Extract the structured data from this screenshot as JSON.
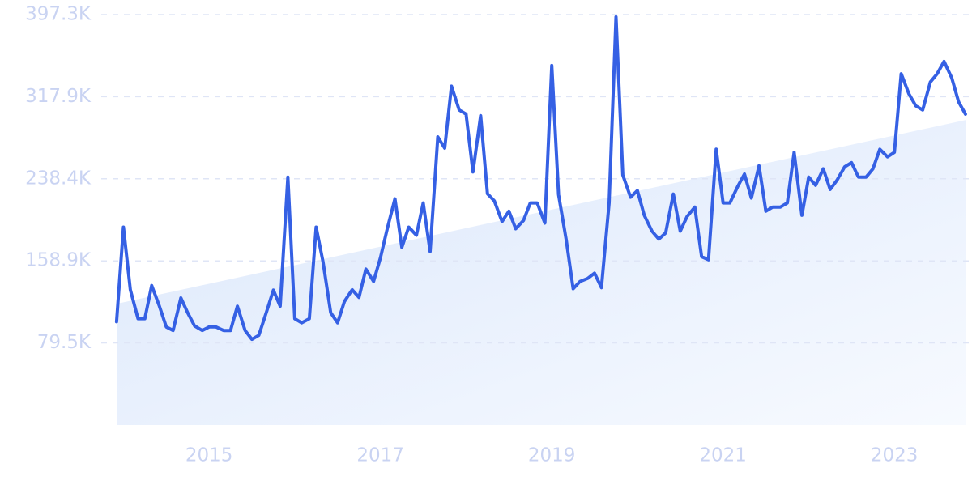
{
  "chart_data": {
    "type": "line",
    "x": [
      2013.92,
      2014.0,
      2014.08,
      2014.17,
      2014.25,
      2014.33,
      2014.42,
      2014.5,
      2014.58,
      2014.67,
      2014.75,
      2014.83,
      2014.92,
      2015.0,
      2015.08,
      2015.17,
      2015.25,
      2015.33,
      2015.42,
      2015.5,
      2015.58,
      2015.67,
      2015.75,
      2015.83,
      2015.92,
      2016.0,
      2016.08,
      2016.17,
      2016.25,
      2016.33,
      2016.42,
      2016.5,
      2016.58,
      2016.67,
      2016.75,
      2016.83,
      2016.92,
      2017.0,
      2017.08,
      2017.17,
      2017.25,
      2017.33,
      2017.42,
      2017.5,
      2017.58,
      2017.67,
      2017.75,
      2017.83,
      2017.92,
      2018.0,
      2018.08,
      2018.17,
      2018.25,
      2018.33,
      2018.42,
      2018.5,
      2018.58,
      2018.67,
      2018.75,
      2018.83,
      2018.92,
      2019.0,
      2019.08,
      2019.17,
      2019.25,
      2019.33,
      2019.42,
      2019.5,
      2019.58,
      2019.67,
      2019.75,
      2019.83,
      2019.92,
      2020.0,
      2020.08,
      2020.17,
      2020.25,
      2020.33,
      2020.42,
      2020.5,
      2020.58,
      2020.67,
      2020.75,
      2020.83,
      2020.92,
      2021.0,
      2021.08,
      2021.17,
      2021.25,
      2021.33,
      2021.42,
      2021.5,
      2021.58,
      2021.67,
      2021.75,
      2021.83,
      2021.92,
      2022.0,
      2022.08,
      2022.17,
      2022.25,
      2022.33,
      2022.42,
      2022.5,
      2022.58,
      2022.67,
      2022.75,
      2022.83,
      2022.92,
      2023.0,
      2023.08,
      2023.17,
      2023.25,
      2023.33,
      2023.42,
      2023.5,
      2023.58,
      2023.67,
      2023.75,
      2023.83
    ],
    "series": [
      {
        "color": "#3560e4",
        "values": [
          100000,
          191600,
          131000,
          103000,
          103000,
          135000,
          115000,
          95000,
          91500,
          123000,
          108700,
          96000,
          91500,
          95000,
          95000,
          91500,
          91500,
          115000,
          91500,
          83000,
          86800,
          109500,
          130600,
          115000,
          240000,
          103000,
          99000,
          103000,
          191600,
          158000,
          108700,
          99000,
          119600,
          131000,
          123600,
          151000,
          139000,
          162000,
          190000,
          219000,
          172000,
          191600,
          183800,
          215000,
          168000,
          279000,
          268000,
          328000,
          305000,
          301000,
          245000,
          299500,
          224000,
          217000,
          197000,
          207000,
          190000,
          198000,
          215000,
          215000,
          195500,
          348000,
          223000,
          179000,
          132000,
          139000,
          142000,
          147000,
          133000,
          215000,
          395000,
          242000,
          220500,
          227000,
          203000,
          187700,
          180000,
          186000,
          223600,
          187700,
          201800,
          211000,
          163000,
          160000,
          267000,
          215000,
          215000,
          230700,
          243000,
          219700,
          251000,
          207000,
          211000,
          211000,
          215000,
          264000,
          203000,
          240000,
          232000,
          248000,
          228000,
          237000,
          250000,
          254000,
          240000,
          240000,
          248000,
          267000,
          259600,
          264000,
          340000,
          320600,
          309000,
          305000,
          332000,
          340000,
          352000,
          336000,
          312800,
          301000
        ]
      }
    ],
    "xlim": [
      2013.93,
      2023.84
    ],
    "xticks": [
      2015,
      2017,
      2019,
      2021,
      2023
    ],
    "ylim": [
      0,
      397300
    ],
    "yticks": [
      {
        "value": 79500,
        "label": "79.5K"
      },
      {
        "value": 158900,
        "label": "158.9K"
      },
      {
        "value": 238400,
        "label": "238.4K"
      },
      {
        "value": 317900,
        "label": "317.9K"
      },
      {
        "value": 397300,
        "label": "397.3K"
      }
    ],
    "grid": true
  }
}
